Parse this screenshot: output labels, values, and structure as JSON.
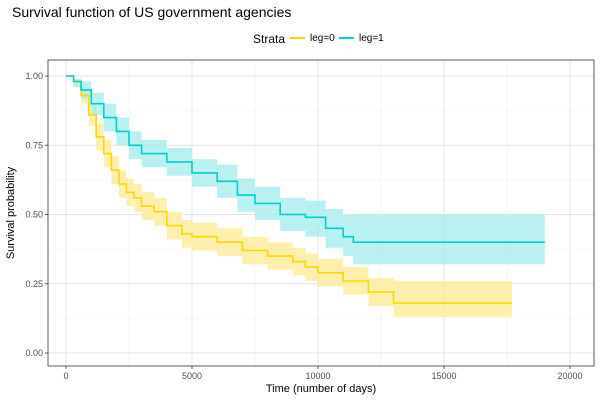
{
  "chart_data": {
    "type": "line",
    "title": "Survival function of US government agencies",
    "xlabel": "Time (number of days)",
    "ylabel": "Survival probability",
    "xlim": [
      0,
      20000
    ],
    "ylim": [
      0,
      1
    ],
    "x_ticks": [
      "0",
      "5000",
      "10000",
      "15000",
      "20000"
    ],
    "y_ticks": [
      "0.00",
      "0.25",
      "0.50",
      "0.75",
      "1.00"
    ],
    "grid": true,
    "legend": {
      "title": "Strata",
      "placement": "top",
      "entries": [
        "leg=0",
        "leg=1"
      ]
    },
    "series": [
      {
        "name": "leg=0",
        "color": "#FFD700",
        "band_color": "#FFEB99",
        "x": [
          0,
          300,
          600,
          900,
          1200,
          1500,
          1800,
          2100,
          2400,
          2700,
          3000,
          3500,
          4000,
          4600,
          5000,
          6000,
          7000,
          8000,
          9000,
          9500,
          10000,
          11000,
          12000,
          13000,
          15000,
          17700
        ],
        "y": [
          1.0,
          0.98,
          0.93,
          0.86,
          0.78,
          0.72,
          0.66,
          0.61,
          0.58,
          0.56,
          0.53,
          0.51,
          0.46,
          0.43,
          0.42,
          0.4,
          0.37,
          0.35,
          0.33,
          0.31,
          0.29,
          0.26,
          0.22,
          0.18,
          0.18,
          0.18
        ],
        "lower": [
          1.0,
          0.96,
          0.9,
          0.82,
          0.73,
          0.67,
          0.61,
          0.56,
          0.53,
          0.51,
          0.48,
          0.46,
          0.41,
          0.38,
          0.37,
          0.35,
          0.32,
          0.3,
          0.28,
          0.26,
          0.24,
          0.21,
          0.17,
          0.13,
          0.13,
          0.13
        ],
        "upper": [
          1.0,
          0.99,
          0.96,
          0.9,
          0.83,
          0.77,
          0.71,
          0.66,
          0.63,
          0.61,
          0.58,
          0.56,
          0.51,
          0.48,
          0.47,
          0.45,
          0.42,
          0.4,
          0.38,
          0.36,
          0.34,
          0.31,
          0.27,
          0.26,
          0.26,
          0.26
        ]
      },
      {
        "name": "leg=1",
        "color": "#00CED1",
        "band_color": "#A8ECEF",
        "x": [
          0,
          300,
          600,
          1000,
          1500,
          2000,
          2500,
          3000,
          4000,
          5000,
          6000,
          6800,
          7500,
          8500,
          9500,
          10300,
          11000,
          11400,
          13000,
          15000,
          19000
        ],
        "y": [
          1.0,
          0.98,
          0.95,
          0.9,
          0.85,
          0.8,
          0.75,
          0.72,
          0.69,
          0.65,
          0.62,
          0.57,
          0.54,
          0.5,
          0.49,
          0.45,
          0.42,
          0.4,
          0.4,
          0.4,
          0.4
        ],
        "lower": [
          1.0,
          0.96,
          0.92,
          0.86,
          0.8,
          0.75,
          0.7,
          0.67,
          0.64,
          0.6,
          0.56,
          0.51,
          0.48,
          0.44,
          0.42,
          0.38,
          0.35,
          0.32,
          0.32,
          0.32,
          0.32
        ],
        "upper": [
          1.0,
          0.99,
          0.98,
          0.94,
          0.9,
          0.85,
          0.8,
          0.77,
          0.74,
          0.7,
          0.68,
          0.63,
          0.6,
          0.56,
          0.55,
          0.52,
          0.5,
          0.5,
          0.5,
          0.5,
          0.5
        ]
      }
    ]
  }
}
